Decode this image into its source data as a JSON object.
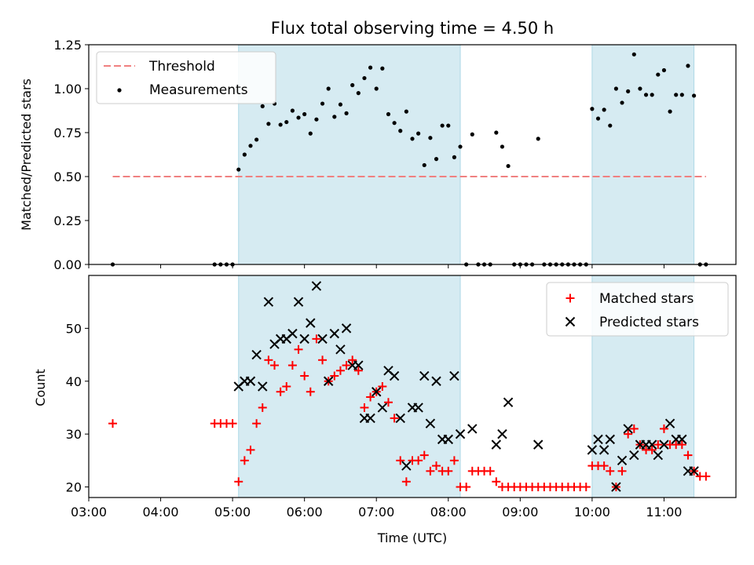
{
  "figure": {
    "title": "Flux total observing time = 4.50 h",
    "xlabel": "Time (UTC)"
  },
  "chart_data": [
    {
      "type": "scatter",
      "panel": "top",
      "ylabel": "Matched/Predicted stars",
      "xlim": [
        "03:00",
        "12:00"
      ],
      "ylim": [
        0,
        1.25
      ],
      "yticks": [
        "0.00",
        "0.25",
        "0.50",
        "0.75",
        "1.00",
        "1.25"
      ],
      "shaded_intervals": [
        [
          "05:05",
          "08:10"
        ],
        [
          "10:00",
          "11:25"
        ]
      ],
      "legend_position": "upper left",
      "threshold": {
        "name": "Threshold",
        "value": 0.5,
        "x_range": [
          "03:20",
          "11:35"
        ],
        "color": "#f08080"
      },
      "series": [
        {
          "name": "Measurements",
          "color": "#000000",
          "points": [
            [
              "03:20",
              0.0
            ],
            [
              "04:45",
              0.0
            ],
            [
              "04:50",
              0.0
            ],
            [
              "04:55",
              0.0
            ],
            [
              "05:00",
              0.0
            ],
            [
              "05:05",
              0.54
            ],
            [
              "05:10",
              0.625
            ],
            [
              "05:15",
              0.675
            ],
            [
              "05:20",
              0.71
            ],
            [
              "05:25",
              0.9
            ],
            [
              "05:30",
              0.8
            ],
            [
              "05:35",
              0.915
            ],
            [
              "05:40",
              0.795
            ],
            [
              "05:45",
              0.81
            ],
            [
              "05:50",
              0.875
            ],
            [
              "05:55",
              0.835
            ],
            [
              "06:00",
              0.855
            ],
            [
              "06:05",
              0.745
            ],
            [
              "06:10",
              0.825
            ],
            [
              "06:15",
              0.915
            ],
            [
              "06:20",
              1.0
            ],
            [
              "06:25",
              0.84
            ],
            [
              "06:30",
              0.91
            ],
            [
              "06:35",
              0.86
            ],
            [
              "06:40",
              1.02
            ],
            [
              "06:45",
              0.975
            ],
            [
              "06:50",
              1.06
            ],
            [
              "06:55",
              1.12
            ],
            [
              "07:00",
              1.0
            ],
            [
              "07:05",
              1.115
            ],
            [
              "07:10",
              0.855
            ],
            [
              "07:15",
              0.805
            ],
            [
              "07:20",
              0.76
            ],
            [
              "07:25",
              0.87
            ],
            [
              "07:30",
              0.715
            ],
            [
              "07:35",
              0.745
            ],
            [
              "07:40",
              0.565
            ],
            [
              "07:45",
              0.72
            ],
            [
              "07:50",
              0.6
            ],
            [
              "07:55",
              0.79
            ],
            [
              "08:00",
              0.79
            ],
            [
              "08:05",
              0.61
            ],
            [
              "08:10",
              0.67
            ],
            [
              "08:15",
              0.0
            ],
            [
              "08:20",
              0.74
            ],
            [
              "08:25",
              0.0
            ],
            [
              "08:30",
              0.0
            ],
            [
              "08:35",
              0.0
            ],
            [
              "08:40",
              0.75
            ],
            [
              "08:45",
              0.67
            ],
            [
              "08:50",
              0.56
            ],
            [
              "08:55",
              0.0
            ],
            [
              "09:00",
              0.0
            ],
            [
              "09:05",
              0.0
            ],
            [
              "09:10",
              0.0
            ],
            [
              "09:15",
              0.715
            ],
            [
              "09:20",
              0.0
            ],
            [
              "09:25",
              0.0
            ],
            [
              "09:30",
              0.0
            ],
            [
              "09:35",
              0.0
            ],
            [
              "09:40",
              0.0
            ],
            [
              "09:45",
              0.0
            ],
            [
              "09:50",
              0.0
            ],
            [
              "09:55",
              0.0
            ],
            [
              "10:00",
              0.885
            ],
            [
              "10:05",
              0.83
            ],
            [
              "10:10",
              0.88
            ],
            [
              "10:15",
              0.79
            ],
            [
              "10:20",
              1.0
            ],
            [
              "10:25",
              0.92
            ],
            [
              "10:30",
              0.985
            ],
            [
              "10:35",
              1.195
            ],
            [
              "10:40",
              1.0
            ],
            [
              "10:45",
              0.965
            ],
            [
              "10:50",
              0.965
            ],
            [
              "10:55",
              1.08
            ],
            [
              "11:00",
              1.105
            ],
            [
              "11:05",
              0.87
            ],
            [
              "11:10",
              0.965
            ],
            [
              "11:15",
              0.965
            ],
            [
              "11:20",
              1.13
            ],
            [
              "11:25",
              0.96
            ],
            [
              "11:30",
              0.0
            ],
            [
              "11:35",
              0.0
            ]
          ]
        }
      ]
    },
    {
      "type": "scatter",
      "panel": "bottom",
      "ylabel": "Count",
      "xlabel": "Time (UTC)",
      "xlim": [
        "03:00",
        "12:00"
      ],
      "ylim": [
        18,
        60
      ],
      "xticks": [
        "03:00",
        "04:00",
        "05:00",
        "06:00",
        "07:00",
        "08:00",
        "09:00",
        "10:00",
        "11:00"
      ],
      "yticks": [
        "20",
        "30",
        "40",
        "50"
      ],
      "shaded_intervals": [
        [
          "05:05",
          "08:10"
        ],
        [
          "10:00",
          "11:25"
        ]
      ],
      "legend_position": "upper right",
      "series": [
        {
          "name": "Matched stars",
          "marker": "plus",
          "color": "#ff0000",
          "points": [
            [
              "03:20",
              32
            ],
            [
              "04:45",
              32
            ],
            [
              "04:50",
              32
            ],
            [
              "04:55",
              32
            ],
            [
              "05:00",
              32
            ],
            [
              "05:05",
              21
            ],
            [
              "05:10",
              25
            ],
            [
              "05:15",
              27
            ],
            [
              "05:20",
              32
            ],
            [
              "05:25",
              35
            ],
            [
              "05:30",
              44
            ],
            [
              "05:35",
              43
            ],
            [
              "05:40",
              38
            ],
            [
              "05:45",
              39
            ],
            [
              "05:50",
              43
            ],
            [
              "05:55",
              46
            ],
            [
              "06:00",
              41
            ],
            [
              "06:05",
              38
            ],
            [
              "06:10",
              48
            ],
            [
              "06:15",
              44
            ],
            [
              "06:20",
              40
            ],
            [
              "06:25",
              41
            ],
            [
              "06:30",
              42
            ],
            [
              "06:35",
              43
            ],
            [
              "06:40",
              44
            ],
            [
              "06:45",
              42
            ],
            [
              "06:50",
              35
            ],
            [
              "06:55",
              37
            ],
            [
              "07:00",
              38
            ],
            [
              "07:05",
              39
            ],
            [
              "07:10",
              36
            ],
            [
              "07:15",
              33
            ],
            [
              "07:20",
              25
            ],
            [
              "07:25",
              21
            ],
            [
              "07:30",
              25
            ],
            [
              "07:35",
              25
            ],
            [
              "07:40",
              26
            ],
            [
              "07:45",
              23
            ],
            [
              "07:50",
              24
            ],
            [
              "07:55",
              23
            ],
            [
              "08:00",
              23
            ],
            [
              "08:05",
              25
            ],
            [
              "08:10",
              20
            ],
            [
              "08:15",
              20
            ],
            [
              "08:20",
              23
            ],
            [
              "08:25",
              23
            ],
            [
              "08:30",
              23
            ],
            [
              "08:35",
              23
            ],
            [
              "08:40",
              21
            ],
            [
              "08:45",
              20
            ],
            [
              "08:50",
              20
            ],
            [
              "08:55",
              20
            ],
            [
              "09:00",
              20
            ],
            [
              "09:05",
              20
            ],
            [
              "09:10",
              20
            ],
            [
              "09:15",
              20
            ],
            [
              "09:20",
              20
            ],
            [
              "09:25",
              20
            ],
            [
              "09:30",
              20
            ],
            [
              "09:35",
              20
            ],
            [
              "09:40",
              20
            ],
            [
              "09:45",
              20
            ],
            [
              "09:50",
              20
            ],
            [
              "09:55",
              20
            ],
            [
              "10:00",
              24
            ],
            [
              "10:05",
              24
            ],
            [
              "10:10",
              24
            ],
            [
              "10:15",
              23
            ],
            [
              "10:20",
              20
            ],
            [
              "10:25",
              23
            ],
            [
              "10:30",
              30
            ],
            [
              "10:35",
              31
            ],
            [
              "10:40",
              28
            ],
            [
              "10:45",
              27
            ],
            [
              "10:50",
              27
            ],
            [
              "10:55",
              28
            ],
            [
              "11:00",
              31
            ],
            [
              "11:05",
              28
            ],
            [
              "11:10",
              28
            ],
            [
              "11:15",
              28
            ],
            [
              "11:20",
              26
            ],
            [
              "11:25",
              23
            ],
            [
              "11:30",
              22
            ],
            [
              "11:35",
              22
            ]
          ]
        },
        {
          "name": "Predicted stars",
          "marker": "x",
          "color": "#000000",
          "points": [
            [
              "05:05",
              39
            ],
            [
              "05:10",
              40
            ],
            [
              "05:15",
              40
            ],
            [
              "05:20",
              45
            ],
            [
              "05:25",
              39
            ],
            [
              "05:30",
              55
            ],
            [
              "05:35",
              47
            ],
            [
              "05:40",
              48
            ],
            [
              "05:45",
              48
            ],
            [
              "05:50",
              49
            ],
            [
              "05:55",
              55
            ],
            [
              "06:00",
              48
            ],
            [
              "06:05",
              51
            ],
            [
              "06:10",
              58
            ],
            [
              "06:15",
              48
            ],
            [
              "06:20",
              40
            ],
            [
              "06:25",
              49
            ],
            [
              "06:30",
              46
            ],
            [
              "06:35",
              50
            ],
            [
              "06:40",
              43
            ],
            [
              "06:45",
              43
            ],
            [
              "06:50",
              33
            ],
            [
              "06:55",
              33
            ],
            [
              "07:00",
              38
            ],
            [
              "07:05",
              35
            ],
            [
              "07:10",
              42
            ],
            [
              "07:15",
              41
            ],
            [
              "07:20",
              33
            ],
            [
              "07:25",
              24
            ],
            [
              "07:30",
              35
            ],
            [
              "07:35",
              35
            ],
            [
              "07:40",
              41
            ],
            [
              "07:45",
              32
            ],
            [
              "07:50",
              40
            ],
            [
              "07:55",
              29
            ],
            [
              "08:00",
              29
            ],
            [
              "08:05",
              41
            ],
            [
              "08:10",
              30
            ],
            [
              "08:20",
              31
            ],
            [
              "08:40",
              28
            ],
            [
              "08:45",
              30
            ],
            [
              "08:50",
              36
            ],
            [
              "09:15",
              28
            ],
            [
              "10:00",
              27
            ],
            [
              "10:05",
              29
            ],
            [
              "10:10",
              27
            ],
            [
              "10:15",
              29
            ],
            [
              "10:20",
              20
            ],
            [
              "10:25",
              25
            ],
            [
              "10:30",
              31
            ],
            [
              "10:35",
              26
            ],
            [
              "10:40",
              28
            ],
            [
              "10:45",
              28
            ],
            [
              "10:50",
              28
            ],
            [
              "10:55",
              26
            ],
            [
              "11:00",
              28
            ],
            [
              "11:05",
              32
            ],
            [
              "11:10",
              29
            ],
            [
              "11:15",
              29
            ],
            [
              "11:20",
              23
            ],
            [
              "11:25",
              23
            ]
          ]
        }
      ]
    }
  ]
}
